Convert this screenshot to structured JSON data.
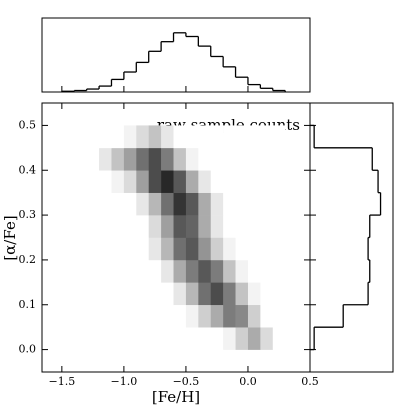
{
  "chart_data": [
    {
      "type": "heatmap",
      "xlabel": "[Fe/H]",
      "ylabel": "[α/Fe]",
      "annotation": "raw sample counts",
      "colormap": "Greys",
      "xbins": [
        -1.5,
        -1.4,
        -1.3,
        -1.2,
        -1.1,
        -1.0,
        -0.9,
        -0.8,
        -0.7,
        -0.6,
        -0.5,
        -0.4,
        -0.3,
        -0.2,
        -0.1,
        0.0,
        0.1,
        0.2,
        0.3
      ],
      "ybins": [
        0.0,
        0.05,
        0.1,
        0.15,
        0.2,
        0.25,
        0.3,
        0.35,
        0.4,
        0.45,
        0.5
      ],
      "z": [
        [
          0,
          0,
          0,
          0,
          0,
          0,
          0,
          0,
          0,
          0,
          0,
          0,
          0,
          5,
          20,
          35,
          15,
          0
        ],
        [
          0,
          0,
          0,
          0,
          0,
          0,
          0,
          0,
          0,
          0,
          5,
          20,
          35,
          55,
          50,
          20,
          0,
          0
        ],
        [
          0,
          0,
          0,
          0,
          0,
          0,
          0,
          0,
          0,
          10,
          30,
          60,
          75,
          55,
          25,
          5,
          0,
          0
        ],
        [
          0,
          0,
          0,
          0,
          0,
          0,
          0,
          0,
          10,
          35,
          55,
          70,
          55,
          25,
          5,
          0,
          0,
          0
        ],
        [
          0,
          0,
          0,
          0,
          0,
          0,
          0,
          10,
          30,
          60,
          70,
          45,
          20,
          5,
          0,
          0,
          0,
          0
        ],
        [
          0,
          0,
          0,
          0,
          0,
          0,
          0,
          15,
          40,
          70,
          65,
          35,
          10,
          0,
          0,
          0,
          0,
          0
        ],
        [
          0,
          0,
          0,
          0,
          0,
          0,
          10,
          30,
          60,
          85,
          70,
          35,
          10,
          0,
          0,
          0,
          0,
          0
        ],
        [
          0,
          0,
          0,
          0,
          5,
          15,
          40,
          75,
          90,
          70,
          35,
          10,
          0,
          0,
          0,
          0,
          0,
          0
        ],
        [
          0,
          0,
          0,
          10,
          25,
          40,
          60,
          75,
          55,
          25,
          5,
          0,
          0,
          0,
          0,
          0,
          0,
          0
        ],
        [
          0,
          0,
          0,
          0,
          0,
          5,
          15,
          25,
          10,
          0,
          0,
          0,
          0,
          0,
          0,
          0,
          0,
          0
        ]
      ],
      "xlim": [
        -1.66,
        0.5
      ],
      "ylim": [
        -0.05,
        0.55
      ],
      "xticks": [
        {
          "value": -1.5,
          "label": "−1.5"
        },
        {
          "value": -1.0,
          "label": "−1.0"
        },
        {
          "value": -0.5,
          "label": "−0.5"
        },
        {
          "value": 0.0,
          "label": "0.0"
        },
        {
          "value": 0.5,
          "label": "0.5"
        }
      ],
      "yticks": [
        {
          "value": 0.0,
          "label": "0.0"
        },
        0.1,
        0.2,
        0.3,
        0.4,
        0.5
      ]
    },
    {
      "type": "histogram",
      "orientation": "vertical",
      "color": "#000000",
      "bins": [
        -1.5,
        -1.4,
        -1.3,
        -1.2,
        -1.1,
        -1.0,
        -0.9,
        -0.8,
        -0.7,
        -0.6,
        -0.5,
        -0.4,
        -0.3,
        -0.2,
        -0.1,
        0.0,
        0.1,
        0.2,
        0.3
      ],
      "counts": [
        1,
        2,
        4,
        8,
        17,
        27,
        40,
        55,
        68,
        80,
        75,
        62,
        48,
        34,
        20,
        10,
        5,
        2
      ],
      "ylim": [
        0,
        100
      ]
    },
    {
      "type": "histogram",
      "orientation": "horizontal",
      "color": "#000000",
      "bins": [
        0.0,
        0.05,
        0.1,
        0.15,
        0.2,
        0.25,
        0.3,
        0.35,
        0.4,
        0.45,
        0.5
      ],
      "counts": [
        5,
        40,
        70,
        72,
        70,
        72,
        85,
        82,
        75,
        5
      ],
      "xlim": [
        0,
        100
      ]
    }
  ]
}
